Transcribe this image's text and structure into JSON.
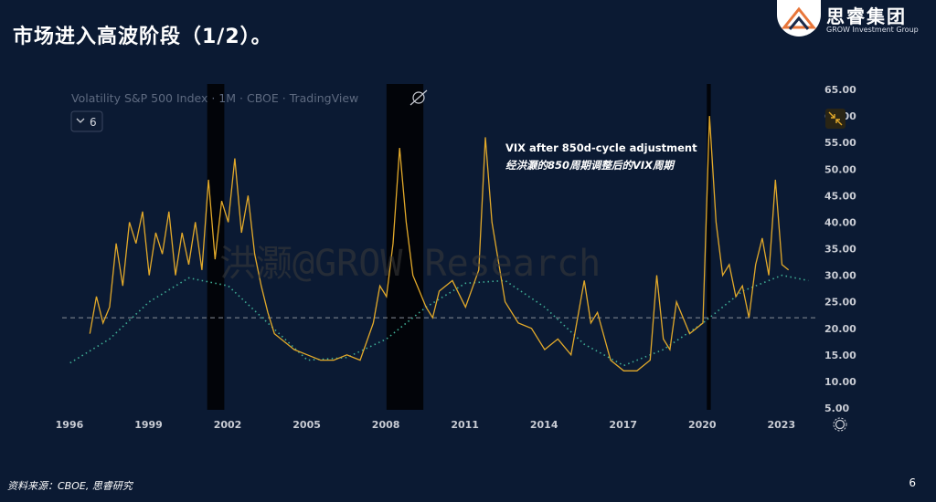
{
  "slide": {
    "title": "市场进入高波阶段（1/2）。",
    "logo_name": "思睿集团",
    "logo_sub": "GROW Investment Group",
    "footer_source": "资料来源：CBOE, 思睿研究",
    "page_number": "6"
  },
  "chart_data": {
    "type": "line",
    "symbol_title": "Volatility S&P 500 Index · 1M · CBOE · TradingView",
    "interval_selector": "6",
    "watermark": "洪灏@GROW Research",
    "annotation_line1": "VIX after 850d-cycle adjustment",
    "annotation_line2": "经洪灏的850周期调整后的VIX周期",
    "x_ticks": [
      "1996",
      "1999",
      "2002",
      "2005",
      "2008",
      "2011",
      "2014",
      "2017",
      "2020",
      "2023"
    ],
    "y_ticks": [
      "5.00",
      "10.00",
      "15.00",
      "20.00",
      "25.00",
      "30.00",
      "35.00",
      "40.00",
      "45.00",
      "50.00",
      "55.00",
      "60.00",
      "65.00"
    ],
    "ylim": [
      5,
      65
    ],
    "xlim": [
      1995.7,
      2024.3
    ],
    "reference_level": 22,
    "colors": {
      "line": "#e2a92a",
      "cycle": "#3fae96",
      "shade": "#000000",
      "reference": "#8a8f99"
    },
    "shaded_periods": [
      [
        2001.2,
        2001.85
      ],
      [
        2008.0,
        2009.4
      ],
      [
        2020.15,
        2020.3
      ]
    ],
    "series": [
      {
        "x": [
          1996.75,
          1997.0,
          1997.25,
          1997.5,
          1997.75,
          1998.0,
          1998.25,
          1998.5,
          1998.75,
          1999.0,
          1999.25,
          1999.5,
          1999.75,
          2000.0,
          2000.25,
          2000.5,
          2000.75,
          2001.0,
          2001.25,
          2001.5,
          2001.75,
          2002.0,
          2002.25,
          2002.5,
          2002.75,
          2003.0,
          2003.25,
          2003.5,
          2003.75,
          2004.0,
          2004.5,
          2005.0,
          2005.5,
          2006.0,
          2006.5,
          2007.0,
          2007.5,
          2007.75,
          2008.0,
          2008.25,
          2008.5,
          2008.75,
          2009.0,
          2009.25,
          2009.5,
          2009.75,
          2010.0,
          2010.5,
          2011.0,
          2011.5,
          2011.75,
          2012.0,
          2012.5,
          2013.0,
          2013.5,
          2014.0,
          2014.5,
          2015.0,
          2015.5,
          2015.75,
          2016.0,
          2016.5,
          2017.0,
          2017.5,
          2018.0,
          2018.25,
          2018.5,
          2018.75,
          2019.0,
          2019.5,
          2020.0,
          2020.25,
          2020.5,
          2020.75,
          2021.0,
          2021.25,
          2021.5,
          2021.75,
          2022.0,
          2022.25,
          2022.5,
          2022.75,
          2023.0,
          2023.25
        ],
        "values": [
          19,
          26,
          21,
          24,
          36,
          28,
          40,
          36,
          42,
          30,
          38,
          34,
          42,
          30,
          38,
          32,
          40,
          31,
          48,
          33,
          44,
          40,
          52,
          38,
          45,
          34,
          28,
          23,
          19,
          18,
          16,
          15,
          14,
          14,
          15,
          14,
          21,
          28,
          26,
          36,
          54,
          40,
          30,
          27,
          24,
          22,
          27,
          29,
          24,
          31,
          56,
          40,
          25,
          21,
          20,
          16,
          18,
          15,
          29,
          21,
          23,
          14,
          12,
          12,
          14,
          30,
          18,
          16,
          25,
          19,
          21,
          60,
          40,
          30,
          32,
          26,
          28,
          22,
          32,
          37,
          30,
          48,
          32,
          31
        ],
        "name": ""
      },
      {
        "x": [
          1996.0,
          1997.5,
          1999.0,
          2000.5,
          2002.0,
          2003.5,
          2005.0,
          2006.5,
          2008.0,
          2009.5,
          2011.0,
          2012.5,
          2014.0,
          2015.5,
          2017.0,
          2018.5,
          2020.0,
          2021.5,
          2023.0,
          2024.0
        ],
        "values": [
          13.5,
          18,
          25,
          29.5,
          28,
          21,
          14,
          14.5,
          18,
          24,
          28.5,
          29,
          24,
          17,
          13,
          16,
          21,
          27,
          30,
          29
        ],
        "name": ""
      }
    ]
  }
}
